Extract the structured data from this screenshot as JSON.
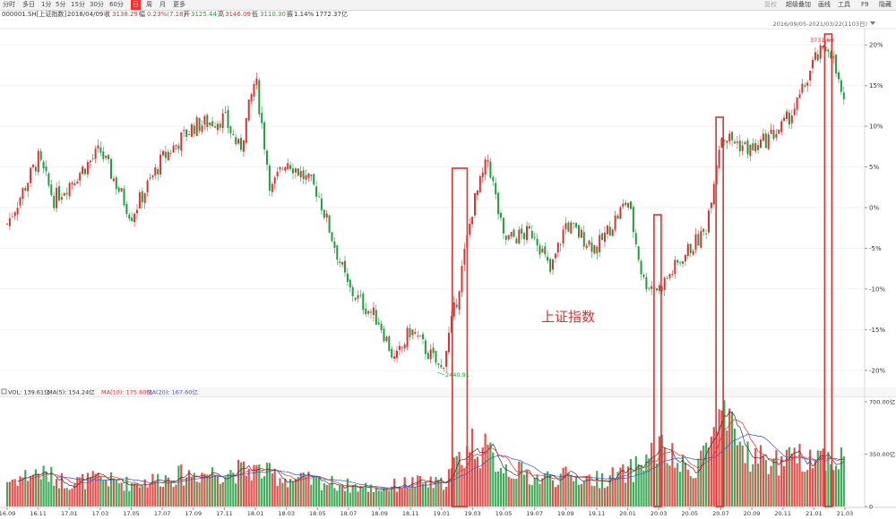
{
  "toolbar": {
    "periods": [
      "分时",
      "多日",
      "1分",
      "5分",
      "15分",
      "30分",
      "60分",
      "日",
      "周",
      "月",
      "更多"
    ],
    "active_period": "日",
    "right_items": [
      "复权",
      "超级叠加",
      "画线",
      "工具",
      "F9",
      "隐藏"
    ]
  },
  "info_bar": {
    "symbol": "000001.SH[上证指数]",
    "date": "2018/04/09",
    "close_label": "收",
    "close_value": "3138.29",
    "change_label": "幅",
    "change_value": "0.23%(7.18)",
    "open_label": "开",
    "open_value": "3125.44",
    "high_label": "高",
    "high_value": "3146.09",
    "low_label": "低",
    "low_value": "3110.30",
    "amplitude_label": "振",
    "amplitude_value": "1.14%",
    "amount_value": "1772.37亿"
  },
  "range_label": "2016/09/05-2021/03/22(1103日)",
  "volume_bar": {
    "vol": "VOL: 139.61亿",
    "ma5": "MA(5): 154.24亿",
    "ma10": "MA(10): 175.60亿",
    "ma20": "MA(20): 167.60亿"
  },
  "caption": "上证指数",
  "chart_data": {
    "type": "candlestick-volume",
    "title": "上证指数",
    "x_ticks": [
      "16.09",
      "16.11",
      "17.01",
      "17.03",
      "17.05",
      "17.07",
      "17.09",
      "17.11",
      "18.01",
      "18.03",
      "18.05",
      "18.07",
      "18.09",
      "18.11",
      "19.01",
      "19.03",
      "19.05",
      "19.07",
      "19.09",
      "19.11",
      "20.01",
      "20.03",
      "20.05",
      "20.07",
      "20.09",
      "20.11",
      "21.01",
      "21.03"
    ],
    "y_ticks": [
      "20%",
      "15%",
      "10%",
      "5%",
      "0%",
      "-5%",
      "-10%",
      "-15%",
      "-20%"
    ],
    "y_range_pct": [
      -22,
      22
    ],
    "volume_ticks": [
      "700.00亿",
      "350.00亿",
      "0"
    ],
    "volume_range": [
      0,
      700
    ],
    "annotations": {
      "max_label": "3731.69",
      "min_label": "2440.91"
    },
    "price_anchors": [
      {
        "x": "16.09",
        "pct": -2
      },
      {
        "x": "16.11",
        "pct": 6
      },
      {
        "x": "16.12",
        "pct": 1
      },
      {
        "x": "17.01",
        "pct": 3
      },
      {
        "x": "17.03",
        "pct": 7
      },
      {
        "x": "17.05",
        "pct": -1
      },
      {
        "x": "17.07",
        "pct": 6
      },
      {
        "x": "17.09",
        "pct": 10
      },
      {
        "x": "17.11",
        "pct": 11
      },
      {
        "x": "17.12",
        "pct": 7
      },
      {
        "x": "18.01",
        "pct": 16
      },
      {
        "x": "18.02",
        "pct": 2
      },
      {
        "x": "18.03",
        "pct": 6
      },
      {
        "x": "18.05",
        "pct": 2
      },
      {
        "x": "18.07",
        "pct": -10
      },
      {
        "x": "18.09",
        "pct": -14
      },
      {
        "x": "18.10",
        "pct": -19
      },
      {
        "x": "18.11",
        "pct": -15
      },
      {
        "x": "19.01",
        "pct": -20
      },
      {
        "x": "19.02",
        "pct": -11
      },
      {
        "x": "19.03",
        "pct": 0
      },
      {
        "x": "19.04",
        "pct": 6
      },
      {
        "x": "19.05",
        "pct": -4
      },
      {
        "x": "19.07",
        "pct": -3
      },
      {
        "x": "19.08",
        "pct": -8
      },
      {
        "x": "19.09",
        "pct": -2
      },
      {
        "x": "19.11",
        "pct": -5
      },
      {
        "x": "20.01",
        "pct": 1
      },
      {
        "x": "20.02",
        "pct": -9
      },
      {
        "x": "20.03",
        "pct": -10
      },
      {
        "x": "20.05",
        "pct": -5
      },
      {
        "x": "20.06",
        "pct": -3
      },
      {
        "x": "20.07",
        "pct": 9
      },
      {
        "x": "20.09",
        "pct": 7
      },
      {
        "x": "20.11",
        "pct": 10
      },
      {
        "x": "20.12",
        "pct": 13
      },
      {
        "x": "21.01",
        "pct": 18
      },
      {
        "x": "21.02",
        "pct": 20
      },
      {
        "x": "21.03",
        "pct": 12
      }
    ],
    "volume_anchors": [
      {
        "x": "16.09",
        "v": 170
      },
      {
        "x": "16.11",
        "v": 230
      },
      {
        "x": "17.01",
        "v": 160
      },
      {
        "x": "17.03",
        "v": 185
      },
      {
        "x": "17.05",
        "v": 150
      },
      {
        "x": "17.07",
        "v": 190
      },
      {
        "x": "17.09",
        "v": 220
      },
      {
        "x": "17.11",
        "v": 230
      },
      {
        "x": "18.01",
        "v": 245
      },
      {
        "x": "18.03",
        "v": 185
      },
      {
        "x": "18.05",
        "v": 170
      },
      {
        "x": "18.07",
        "v": 140
      },
      {
        "x": "18.09",
        "v": 120
      },
      {
        "x": "18.11",
        "v": 160
      },
      {
        "x": "19.01",
        "v": 150
      },
      {
        "x": "19.03",
        "v": 430
      },
      {
        "x": "19.05",
        "v": 270
      },
      {
        "x": "19.07",
        "v": 190
      },
      {
        "x": "19.09",
        "v": 200
      },
      {
        "x": "19.11",
        "v": 180
      },
      {
        "x": "20.01",
        "v": 220
      },
      {
        "x": "20.03",
        "v": 390
      },
      {
        "x": "20.05",
        "v": 220
      },
      {
        "x": "20.07",
        "v": 560
      },
      {
        "x": "20.09",
        "v": 330
      },
      {
        "x": "20.11",
        "v": 290
      },
      {
        "x": "21.01",
        "v": 350
      },
      {
        "x": "21.03",
        "v": 310
      }
    ],
    "highlight_ranges": [
      {
        "from": "19.01",
        "to": "19.03"
      },
      {
        "from": "20.02",
        "to": "20.03"
      },
      {
        "from": "20.06",
        "to": "20.07"
      },
      {
        "from": "21.01",
        "to": "21.02"
      }
    ],
    "colors": {
      "up": "#e0302f",
      "down": "#1e9e3e",
      "ma5": "#333333",
      "ma10": "#e0302f",
      "ma20": "#3355cc",
      "highlight": "#e0302f"
    }
  }
}
